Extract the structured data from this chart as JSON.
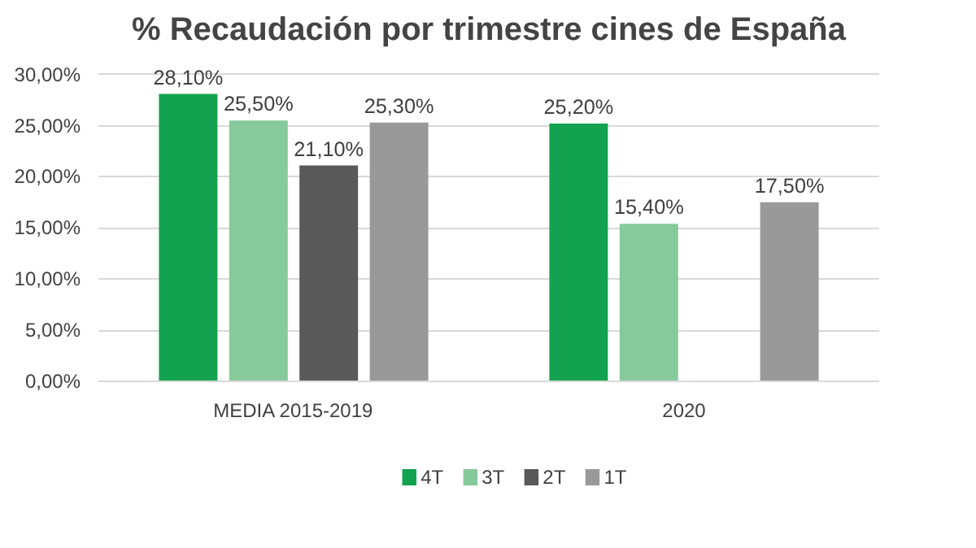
{
  "chart_data": {
    "type": "bar",
    "title": "% Recaudación por trimestre cines de España",
    "categories": [
      "MEDIA 2015-2019",
      "2020"
    ],
    "series": [
      {
        "name": "4T",
        "color": "#13a24f",
        "values": [
          28.1,
          25.2
        ],
        "value_labels": [
          "28,10%",
          "25,20%"
        ]
      },
      {
        "name": "3T",
        "color": "#86c99b",
        "values": [
          25.5,
          15.4
        ],
        "value_labels": [
          "25,50%",
          "15,40%"
        ]
      },
      {
        "name": "2T",
        "color": "#595959",
        "values": [
          21.1,
          null
        ],
        "value_labels": [
          "21,10%",
          null
        ]
      },
      {
        "name": "1T",
        "color": "#999999",
        "values": [
          25.3,
          17.5
        ],
        "value_labels": [
          "25,30%",
          "17,50%"
        ]
      }
    ],
    "ylim": [
      0,
      30
    ],
    "yticks": [
      {
        "value": 0,
        "label": "0,00%"
      },
      {
        "value": 5,
        "label": "5,00%"
      },
      {
        "value": 10,
        "label": "10,00%"
      },
      {
        "value": 15,
        "label": "15,00%"
      },
      {
        "value": 20,
        "label": "20,00%"
      },
      {
        "value": 25,
        "label": "25,00%"
      },
      {
        "value": 30,
        "label": "30,00%"
      }
    ],
    "grid": "y",
    "legend": "bottom"
  }
}
